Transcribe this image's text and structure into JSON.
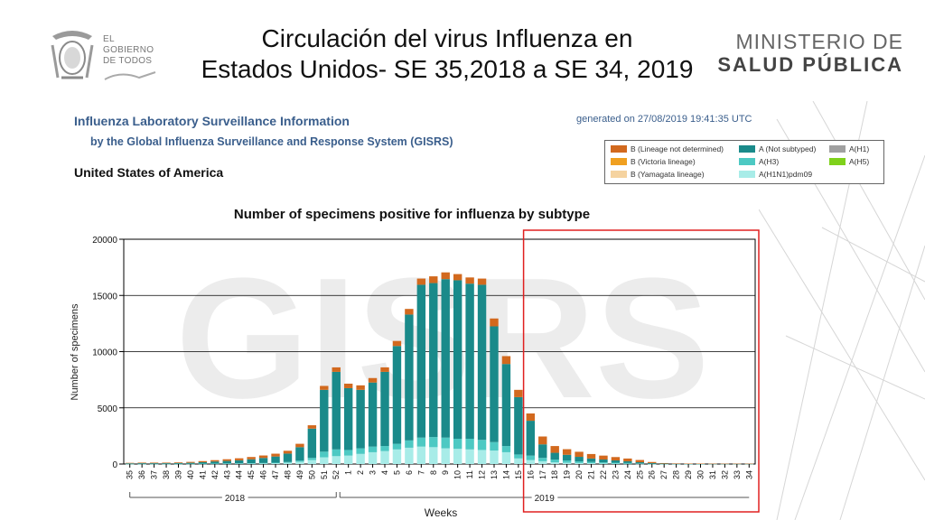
{
  "slide": {
    "title_line1": "Circulación del virus Influenza en",
    "title_line2": "Estados Unidos- SE 35,2018 a SE 34, 2019"
  },
  "logo_left": {
    "line1": "EL",
    "line2": "GOBIERNO",
    "line3": "DE TODOS"
  },
  "logo_right": {
    "line1": "MINISTERIO DE",
    "line2": "SALUD PÚBLICA"
  },
  "report": {
    "title": "Influenza Laboratory Surveillance Information",
    "subtitle": "by the Global Influenza Surveillance and Response System (GISRS)",
    "generated": "generated on 27/08/2019 19:41:35 UTC",
    "country": "United States of America",
    "watermark": "GISRS"
  },
  "colors": {
    "b_lineage_not_determined": "#d2691e",
    "b_victoria": "#f0a020",
    "b_yamagata": "#f5d3a0",
    "a_not_subtyped": "#1a8a8a",
    "a_h3": "#4dc9c3",
    "a_h1n1pdm09": "#a8ece8",
    "a_h1": "#a0a0a0",
    "a_h5": "#7fd11b",
    "highlight": "#e02020"
  },
  "chart_data": {
    "type": "bar",
    "stacked": true,
    "title": "Number of specimens positive for influenza by subtype",
    "xlabel": "Weeks",
    "ylabel": "Number of specimens",
    "ylim": [
      0,
      20000
    ],
    "yticks": [
      "0",
      "5000",
      "10000",
      "15000",
      "20000"
    ],
    "grid": true,
    "legend_position": "top-right",
    "year_labels": [
      "2018",
      "2019"
    ],
    "categories": [
      "35",
      "36",
      "37",
      "38",
      "39",
      "40",
      "41",
      "42",
      "43",
      "44",
      "45",
      "46",
      "47",
      "48",
      "49",
      "50",
      "51",
      "52",
      "1",
      "2",
      "3",
      "4",
      "5",
      "6",
      "7",
      "8",
      "9",
      "10",
      "11",
      "12",
      "13",
      "14",
      "15",
      "16",
      "17",
      "18",
      "19",
      "20",
      "21",
      "22",
      "23",
      "24",
      "25",
      "26",
      "27",
      "28",
      "29",
      "30",
      "31",
      "32",
      "33",
      "34"
    ],
    "legend": [
      {
        "key": "b_lineage_not_determined",
        "label": "B (Lineage not determined)"
      },
      {
        "key": "b_victoria",
        "label": "B (Victoria lineage)"
      },
      {
        "key": "b_yamagata",
        "label": "B (Yamagata lineage)"
      },
      {
        "key": "a_not_subtyped",
        "label": "A (Not subtyped)"
      },
      {
        "key": "a_h3",
        "label": "A(H3)"
      },
      {
        "key": "a_h1n1pdm09",
        "label": "A(H1N1)pdm09"
      },
      {
        "key": "a_h1",
        "label": "A(H1)"
      },
      {
        "key": "a_h5",
        "label": "A(H5)"
      }
    ],
    "series": [
      {
        "name": "A(H1N1)pdm09",
        "key": "a_h1n1pdm09",
        "values": [
          15,
          15,
          15,
          15,
          20,
          20,
          25,
          30,
          35,
          40,
          50,
          60,
          80,
          120,
          200,
          350,
          600,
          700,
          750,
          900,
          1050,
          1150,
          1300,
          1450,
          1550,
          1500,
          1400,
          1350,
          1300,
          1250,
          1200,
          1050,
          500,
          350,
          250,
          150,
          120,
          90,
          70,
          50,
          40,
          30,
          20,
          10,
          5,
          5,
          5,
          5,
          5,
          5,
          5,
          5
        ]
      },
      {
        "name": "A(H3)",
        "key": "a_h3",
        "values": [
          10,
          10,
          10,
          10,
          10,
          10,
          15,
          15,
          20,
          20,
          25,
          30,
          40,
          60,
          100,
          200,
          500,
          600,
          500,
          500,
          500,
          450,
          500,
          650,
          800,
          900,
          950,
          900,
          950,
          900,
          750,
          550,
          350,
          400,
          300,
          250,
          200,
          150,
          120,
          100,
          80,
          60,
          40,
          20,
          10,
          5,
          5,
          5,
          5,
          5,
          5,
          5
        ]
      },
      {
        "name": "A (Not subtyped)",
        "key": "a_not_subtyped",
        "values": [
          40,
          50,
          50,
          50,
          60,
          80,
          120,
          180,
          220,
          270,
          350,
          450,
          550,
          750,
          1200,
          2600,
          5500,
          6900,
          5500,
          5200,
          5700,
          6600,
          8700,
          11200,
          13600,
          13700,
          14100,
          14100,
          13800,
          13800,
          10300,
          7300,
          5100,
          3100,
          1200,
          600,
          500,
          400,
          300,
          250,
          200,
          150,
          100,
          50,
          20,
          10,
          10,
          10,
          10,
          10,
          10,
          10
        ]
      },
      {
        "name": "B (Lineage not determined)",
        "key": "b_lineage_not_determined",
        "values": [
          40,
          50,
          50,
          50,
          60,
          80,
          100,
          120,
          150,
          180,
          200,
          220,
          250,
          250,
          300,
          300,
          350,
          400,
          400,
          400,
          400,
          400,
          450,
          500,
          550,
          600,
          600,
          550,
          550,
          550,
          700,
          700,
          650,
          650,
          700,
          600,
          500,
          450,
          400,
          350,
          300,
          250,
          200,
          100,
          50,
          30,
          20,
          20,
          10,
          10,
          10,
          10
        ]
      },
      {
        "name": "B (Victoria lineage)",
        "key": "b_victoria",
        "values": [
          0,
          0,
          0,
          0,
          0,
          0,
          0,
          0,
          0,
          0,
          0,
          0,
          0,
          0,
          0,
          0,
          0,
          0,
          0,
          0,
          0,
          0,
          0,
          0,
          0,
          0,
          0,
          0,
          0,
          0,
          0,
          0,
          0,
          0,
          0,
          0,
          0,
          0,
          0,
          0,
          0,
          0,
          0,
          0,
          0,
          0,
          0,
          0,
          0,
          0,
          0,
          0
        ]
      },
      {
        "name": "B (Yamagata lineage)",
        "key": "b_yamagata",
        "values": [
          0,
          0,
          0,
          0,
          0,
          0,
          0,
          0,
          0,
          0,
          0,
          0,
          0,
          0,
          0,
          0,
          0,
          0,
          0,
          0,
          0,
          0,
          0,
          0,
          0,
          0,
          0,
          0,
          0,
          0,
          0,
          0,
          0,
          0,
          0,
          0,
          0,
          0,
          0,
          0,
          0,
          0,
          0,
          0,
          0,
          0,
          0,
          0,
          0,
          0,
          0,
          0
        ]
      }
    ],
    "highlight_range": [
      "16",
      "34"
    ]
  }
}
